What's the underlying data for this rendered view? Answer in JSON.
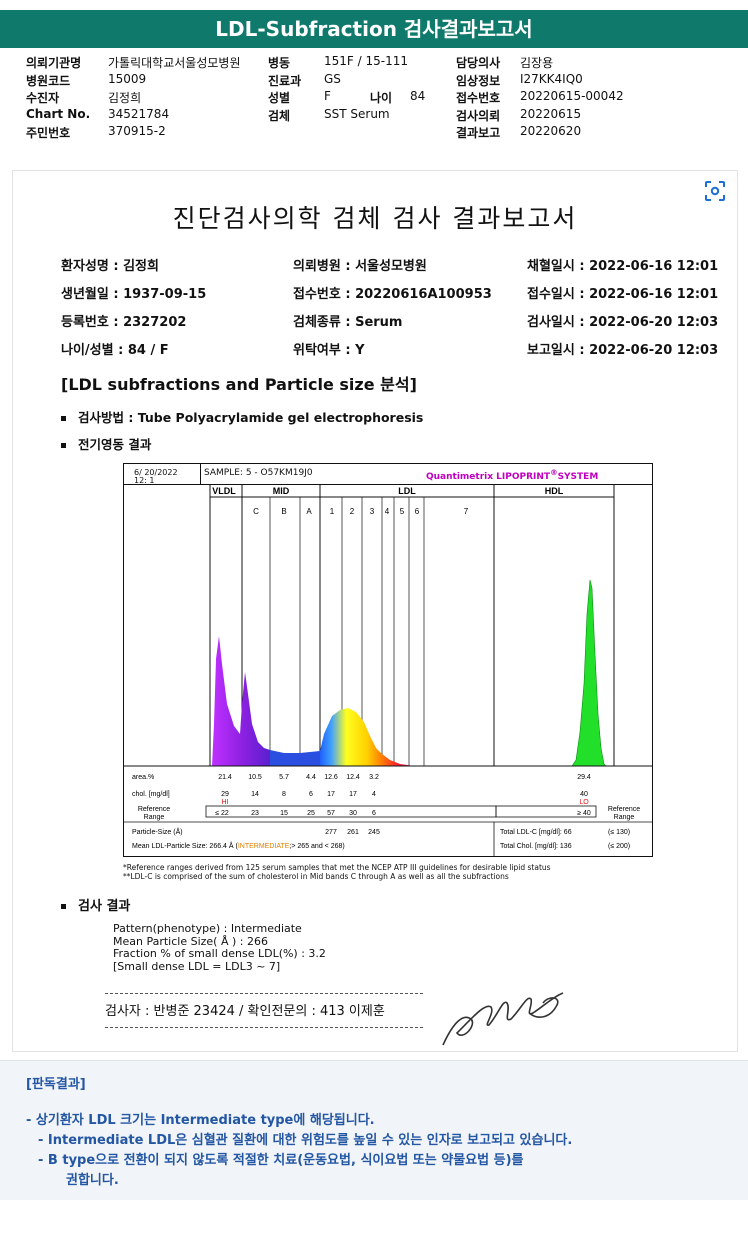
{
  "header": {
    "title": "LDL-Subfraction 검사결과보고서"
  },
  "meta": {
    "rows": [
      [
        {
          "label": "의뢰기관명",
          "value": "가톨릭대학교서울성모병원"
        },
        {
          "label": "병동",
          "value": "151F / 15-111"
        },
        {
          "label": "담당의사",
          "value": "김장용"
        }
      ],
      [
        {
          "label": "병원코드",
          "value": "15009"
        },
        {
          "label": "진료과",
          "value": "GS"
        },
        {
          "label": "임상정보",
          "value": "I27KK4IQ0"
        }
      ],
      [
        {
          "label": "수진자",
          "value": "김정희"
        },
        {
          "label": "성별",
          "value": "F"
        },
        {
          "label": "접수번호",
          "value": "20220615-00042"
        }
      ],
      [
        {
          "label": "Chart No.",
          "value": "34521784"
        },
        {
          "label": "검체",
          "value": "SST Serum"
        },
        {
          "label": "검사의뢰",
          "value": "20220615"
        }
      ],
      [
        {
          "label": "주민번호",
          "value": "370915-2"
        },
        {
          "label": "",
          "value": ""
        },
        {
          "label": "결과보고",
          "value": "20220620"
        }
      ]
    ],
    "age_label": "나이",
    "age_value": "84"
  },
  "report": {
    "title": "진단검사의학 검체 검사 결과보고서",
    "patient": [
      [
        "환자성명 : 김정희",
        "의뢰병원 : 서울성모병원",
        "채혈일시 : 2022-06-16 12:01"
      ],
      [
        "생년월일 : 1937-09-15",
        "접수번호 : 20220616A100953",
        "접수일시 : 2022-06-16 12:01"
      ],
      [
        "등록번호 : 2327202",
        "검체종류 : Serum",
        "검사일시 : 2022-06-20 12:03"
      ],
      [
        "나이/성별 : 84 / F",
        "위탁여부 : Y",
        "보고일시 : 2022-06-20 12:03"
      ]
    ],
    "section_title": "[LDL subfractions and Particle size 분석]",
    "method": "검사방법 : Tube Polyacrylamide gel electrophoresis",
    "electro": "전기영동 결과",
    "result_heading": "검사 결과",
    "result_lines": [
      "Pattern(phenotype) : Intermediate",
      "Mean Particle Size( Å ) : 266",
      "Fraction % of small dense LDL(%) : 3.2",
      "[Small dense LDL = LDL3 ~ 7]"
    ],
    "signature": "검사자 : 반병준  23424  /  확인전문의 : 413  이제훈",
    "notes": [
      "*Reference ranges derived from 125 serum samples that met the NCEP ATP III guidelines for desirable lipid status",
      "**LDL-C is comprised of the sum of cholesterol in Mid bands C through A as well as all the subfractions"
    ]
  },
  "chart_data": {
    "type": "area",
    "date": "6/ 20/2022",
    "time": "12:  1",
    "sample": "SAMPLE:   5 - O57KM19J0",
    "system": "Quantimetrix LIPOPRINT",
    "system_suffix": "SYSTEM",
    "sections": [
      "VLDL",
      "MID",
      "LDL",
      "HDL"
    ],
    "bands": [
      "C",
      "B",
      "A",
      "1",
      "2",
      "3",
      "4",
      "5",
      "6",
      "7"
    ],
    "rows": {
      "area_label": "area.%",
      "area": [
        "21.4",
        "10.5",
        "5.7",
        "4.4",
        "12.6",
        "12.4",
        "3.2",
        "29.4"
      ],
      "chol_label": "chol. [mg/dl]",
      "chol": [
        "29",
        "14",
        "8",
        "6",
        "17",
        "17",
        "4",
        "40"
      ],
      "flag_hi": "HI",
      "flag_lo": "LO",
      "ref_label": "Reference Range",
      "ref": [
        "≤  22",
        "23",
        "15",
        "25",
        "57",
        "30",
        "6"
      ],
      "ref_hdl": "≥ 40",
      "ref_right": "Reference Range",
      "particle_label": "Particle-Size (Å)",
      "particle": [
        "277",
        "261",
        "245"
      ],
      "mean_label": "Mean LDL-Particle Size:   266.4 Å",
      "mean_tag": "INTERMEDIATE",
      "mean_suffix": "> 265 and < 268)",
      "total_ldl": "Total LDL-C [mg/dl]:  66",
      "total_ldl_ref": "(≤ 130)",
      "total_chol": "Total Chol. [mg/dl]:   136",
      "total_chol_ref": "(≤ 200)"
    }
  },
  "interpretation": {
    "heading": "[판독결과]",
    "lines": [
      "-  상기환자 LDL 크기는 Intermediate type에 해당됩니다.",
      "-  Intermediate LDL은 심혈관 질환에 대한 위험도를 높일 수 있는 인자로 보고되고 있습니다.",
      "-  B type으로 전환이 되지 않도록 적절한 치료(운동요법, 식이요법 또는 약물요법 등)를",
      "권합니다."
    ]
  }
}
